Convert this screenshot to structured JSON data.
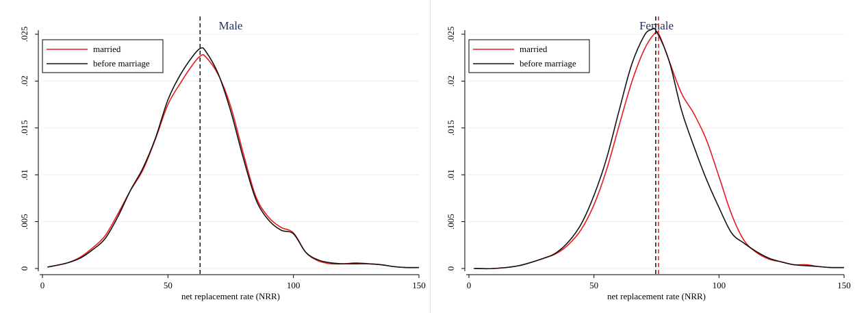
{
  "chart_data": [
    {
      "type": "line",
      "title": "Male",
      "xlabel": "net replacement rate (NRR)",
      "ylabel": "",
      "xlim": [
        0,
        150
      ],
      "ylim": [
        0,
        0.025
      ],
      "xticks": [
        0,
        50,
        100,
        150
      ],
      "yticks": [
        0,
        0.005,
        0.01,
        0.015,
        0.02,
        0.025
      ],
      "ytick_labels": [
        "0",
        ".005",
        ".01",
        ".015",
        ".02",
        ".025"
      ],
      "grid": true,
      "legend": "top-left",
      "series": [
        {
          "name": "married",
          "color": "#e8191c",
          "x": [
            2,
            5,
            10,
            15,
            20,
            25,
            30,
            35,
            40,
            45,
            50,
            55,
            60,
            63,
            65,
            70,
            75,
            80,
            85,
            90,
            95,
            100,
            105,
            110,
            115,
            120,
            125,
            130,
            135,
            140,
            145,
            150
          ],
          "y": [
            0.00015,
            0.0003,
            0.0006,
            0.0012,
            0.0022,
            0.0035,
            0.0058,
            0.0083,
            0.0105,
            0.0138,
            0.0175,
            0.0198,
            0.0218,
            0.0227,
            0.0226,
            0.0207,
            0.0173,
            0.0123,
            0.0077,
            0.0055,
            0.0044,
            0.0038,
            0.0017,
            0.0008,
            0.0005,
            0.0005,
            0.0006,
            0.0005,
            0.0004,
            0.0002,
            0.0001,
            0.0001
          ]
        },
        {
          "name": "before marriage",
          "color": "#111111",
          "x": [
            2,
            5,
            10,
            15,
            20,
            25,
            30,
            35,
            40,
            45,
            50,
            55,
            60,
            63,
            65,
            70,
            75,
            80,
            85,
            90,
            95,
            100,
            105,
            110,
            115,
            120,
            125,
            130,
            135,
            140,
            145,
            150
          ],
          "y": [
            0.00015,
            0.0003,
            0.0006,
            0.0011,
            0.002,
            0.0032,
            0.0055,
            0.0083,
            0.0107,
            0.0139,
            0.018,
            0.0207,
            0.0227,
            0.0235,
            0.0232,
            0.0208,
            0.0168,
            0.0118,
            0.0074,
            0.0052,
            0.0041,
            0.0037,
            0.0017,
            0.0009,
            0.0006,
            0.0005,
            0.0005,
            0.0005,
            0.0004,
            0.0002,
            0.0001,
            0.0001
          ]
        }
      ],
      "vlines": [
        {
          "series": "married",
          "x": 62.8,
          "color": "#e8191c"
        },
        {
          "series": "before marriage",
          "x": 62.8,
          "color": "#111111"
        }
      ]
    },
    {
      "type": "line",
      "title": "Female",
      "xlabel": "net replacement rate (NRR)",
      "ylabel": "",
      "xlim": [
        0,
        150
      ],
      "ylim": [
        0,
        0.025
      ],
      "xticks": [
        0,
        50,
        100,
        150
      ],
      "yticks": [
        0,
        0.005,
        0.01,
        0.015,
        0.02,
        0.025
      ],
      "ytick_labels": [
        "0",
        ".005",
        ".01",
        ".015",
        ".02",
        ".025"
      ],
      "grid": true,
      "legend": "top-left",
      "series": [
        {
          "name": "married",
          "color": "#e8191c",
          "x": [
            2,
            10,
            20,
            30,
            35,
            40,
            45,
            50,
            55,
            60,
            65,
            70,
            74,
            76,
            80,
            85,
            90,
            95,
            100,
            105,
            110,
            115,
            120,
            125,
            130,
            135,
            140,
            145,
            150
          ],
          "y": [
            0.0,
            0.0,
            0.0003,
            0.0011,
            0.0016,
            0.0026,
            0.0042,
            0.0068,
            0.0105,
            0.0152,
            0.0198,
            0.0233,
            0.025,
            0.025,
            0.0222,
            0.0187,
            0.0165,
            0.0137,
            0.0098,
            0.0058,
            0.003,
            0.0017,
            0.001,
            0.0007,
            0.0004,
            0.0004,
            0.0002,
            0.0001,
            0.0001
          ]
        },
        {
          "name": "before marriage",
          "color": "#111111",
          "x": [
            2,
            10,
            20,
            30,
            35,
            40,
            45,
            50,
            55,
            60,
            65,
            70,
            73,
            75,
            80,
            85,
            90,
            95,
            100,
            105,
            110,
            115,
            120,
            125,
            130,
            135,
            140,
            145,
            150
          ],
          "y": [
            0.0,
            0.0,
            0.0003,
            0.0011,
            0.0017,
            0.0029,
            0.0048,
            0.0078,
            0.0117,
            0.0168,
            0.0217,
            0.0248,
            0.0255,
            0.0253,
            0.0222,
            0.0169,
            0.013,
            0.0095,
            0.0065,
            0.0038,
            0.0027,
            0.0018,
            0.0011,
            0.0007,
            0.0004,
            0.0003,
            0.0002,
            0.0001,
            0.0001
          ]
        }
      ],
      "vlines": [
        {
          "series": "married",
          "x": 75.8,
          "color": "#e8191c"
        },
        {
          "series": "before marriage",
          "x": 74.7,
          "color": "#111111"
        }
      ]
    }
  ]
}
